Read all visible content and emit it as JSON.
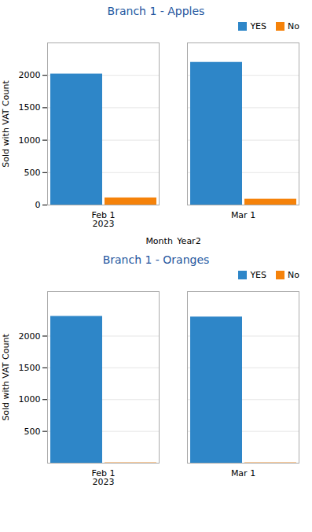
{
  "chart_data": [
    {
      "type": "bar",
      "title": "Branch 1 - Apples",
      "xlabel": "Month_Year2",
      "ylabel": "Sold with VAT Count",
      "categories": [
        "Feb 1\n2023",
        "Mar 1"
      ],
      "series": [
        {
          "name": "YES",
          "color": "#2E86C8",
          "values": [
            2020,
            2200
          ]
        },
        {
          "name": "No",
          "color": "#F5820A",
          "values": [
            110,
            90
          ]
        }
      ],
      "ylim": [
        0,
        2500
      ],
      "yticks": [
        0,
        500,
        1000,
        1500,
        2000
      ],
      "grid": true,
      "legend": "upper right"
    },
    {
      "type": "bar",
      "title": "Branch 1 - Oranges",
      "ylabel": "Sold with VAT Count",
      "categories": [
        "Feb 1\n2023",
        "Mar 1"
      ],
      "series": [
        {
          "name": "YES",
          "color": "#2E86C8",
          "values": [
            2310,
            2300
          ]
        },
        {
          "name": "No",
          "color": "#F5820A",
          "values": [
            5,
            5
          ]
        }
      ],
      "ylim": [
        0,
        2700
      ],
      "yticks": [
        500,
        1000,
        1500,
        2000
      ],
      "grid": true,
      "legend": "upper right"
    }
  ]
}
